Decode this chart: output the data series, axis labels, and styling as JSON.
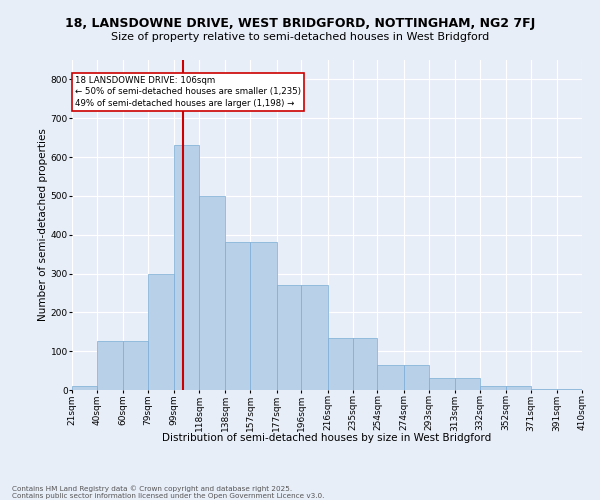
{
  "title": "18, LANSDOWNE DRIVE, WEST BRIDGFORD, NOTTINGHAM, NG2 7FJ",
  "subtitle": "Size of property relative to semi-detached houses in West Bridgford",
  "xlabel": "Distribution of semi-detached houses by size in West Bridgford",
  "ylabel": "Number of semi-detached properties",
  "footnote": "Contains HM Land Registry data © Crown copyright and database right 2025.\nContains public sector information licensed under the Open Government Licence v3.0.",
  "bins": [
    21,
    40,
    60,
    79,
    99,
    118,
    138,
    157,
    177,
    196,
    216,
    235,
    254,
    274,
    293,
    313,
    332,
    352,
    371,
    391,
    410
  ],
  "bin_labels": [
    "21sqm",
    "40sqm",
    "60sqm",
    "79sqm",
    "99sqm",
    "118sqm",
    "138sqm",
    "157sqm",
    "177sqm",
    "196sqm",
    "216sqm",
    "235sqm",
    "254sqm",
    "274sqm",
    "293sqm",
    "313sqm",
    "332sqm",
    "352sqm",
    "371sqm",
    "391sqm",
    "410sqm"
  ],
  "values": [
    10,
    125,
    125,
    300,
    630,
    500,
    380,
    380,
    270,
    270,
    135,
    135,
    65,
    65,
    30,
    30,
    10,
    10,
    2,
    2
  ],
  "bar_color": "#b8d0e8",
  "bar_edge_color": "#7aadd4",
  "vline_x": 106,
  "vline_color": "#cc0000",
  "annotation_text": "18 LANSDOWNE DRIVE: 106sqm\n← 50% of semi-detached houses are smaller (1,235)\n49% of semi-detached houses are larger (1,198) →",
  "annotation_box_color": "#ffffff",
  "annotation_box_edge": "#cc0000",
  "ylim": [
    0,
    850
  ],
  "yticks": [
    0,
    100,
    200,
    300,
    400,
    500,
    600,
    700,
    800
  ],
  "background_color": "#e8eef8",
  "plot_background": "#e8eef8",
  "grid_color": "#ffffff",
  "title_fontsize": 9,
  "subtitle_fontsize": 8,
  "axis_fontsize": 7.5,
  "tick_fontsize": 6.5,
  "footnote_fontsize": 5.2
}
